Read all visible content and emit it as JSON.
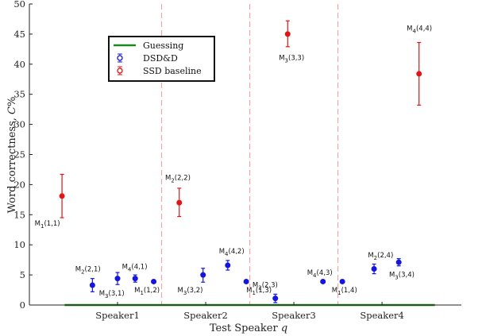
{
  "chart_data": {
    "type": "scatter",
    "title": "",
    "xlabel": "Test Speaker q",
    "ylabel": "Word correctness, C%",
    "ylim": [
      0,
      50
    ],
    "yticks": [
      0,
      5,
      10,
      15,
      20,
      25,
      30,
      35,
      40,
      45,
      50
    ],
    "categories": [
      "Speaker1",
      "Speaker2",
      "Speaker3",
      "Speaker4"
    ],
    "grid": false,
    "legend_position": "top-left",
    "colors": {
      "guessing": "#1a8a1a",
      "dsd": "#1515e0",
      "ssd": "#e01515",
      "separator": "#f4a6a6"
    },
    "series": [
      {
        "name": "Guessing",
        "kind": "line",
        "x": [
          0.4,
          4.6
        ],
        "y": [
          0,
          0
        ]
      },
      {
        "name": "DSD&D",
        "kind": "errorbar",
        "points": [
          {
            "x": 0.715,
            "y": 3.3,
            "low": 2.2,
            "high": 4.4
          },
          {
            "x": 1.0,
            "y": 4.4,
            "low": 3.4,
            "high": 5.4
          },
          {
            "x": 1.2,
            "y": 4.4,
            "low": 3.8,
            "high": 5.0
          },
          {
            "x": 1.41,
            "y": 3.9,
            "low": 3.9,
            "high": 3.9
          },
          {
            "x": 1.97,
            "y": 5.0,
            "low": 3.8,
            "high": 6.1
          },
          {
            "x": 2.25,
            "y": 6.6,
            "low": 5.8,
            "high": 7.4
          },
          {
            "x": 2.46,
            "y": 3.9,
            "low": 3.9,
            "high": 3.9
          },
          {
            "x": 2.79,
            "y": 1.1,
            "low": 0.4,
            "high": 1.8
          },
          {
            "x": 3.33,
            "y": 3.9,
            "low": 3.9,
            "high": 3.9
          },
          {
            "x": 3.55,
            "y": 3.9,
            "low": 3.9,
            "high": 3.9
          },
          {
            "x": 3.91,
            "y": 6.0,
            "low": 5.2,
            "high": 6.8
          },
          {
            "x": 4.19,
            "y": 7.1,
            "low": 6.5,
            "high": 7.7
          }
        ]
      },
      {
        "name": "SSD baseline",
        "kind": "errorbar",
        "points": [
          {
            "x": 0.37,
            "y": 18.1,
            "low": 14.5,
            "high": 21.7
          },
          {
            "x": 1.7,
            "y": 17.0,
            "low": 14.7,
            "high": 19.4
          },
          {
            "x": 2.93,
            "y": 45.0,
            "low": 42.9,
            "high": 47.2
          },
          {
            "x": 4.42,
            "y": 38.4,
            "low": 33.2,
            "high": 43.6
          }
        ]
      }
    ],
    "separators": [
      1.5,
      2.5,
      3.5
    ],
    "annotations": [
      {
        "base": "M",
        "sub": "1",
        "args": "(1,1)",
        "x": 0.06,
        "y": 13.2
      },
      {
        "base": "M",
        "sub": "2",
        "args": "(2,1)",
        "x": 0.52,
        "y": 5.6
      },
      {
        "base": "M",
        "sub": "3",
        "args": "(3,1)",
        "x": 0.79,
        "y": 1.6
      },
      {
        "base": "M",
        "sub": "4",
        "args": "(4,1)",
        "x": 1.05,
        "y": 6.0
      },
      {
        "base": "M",
        "sub": "1",
        "args": "(1,2)",
        "x": 1.19,
        "y": 2.1
      },
      {
        "base": "M",
        "sub": "2",
        "args": "(2,2)",
        "x": 1.54,
        "y": 20.8
      },
      {
        "base": "M",
        "sub": "3",
        "args": "(3,2)",
        "x": 1.68,
        "y": 2.1
      },
      {
        "base": "M",
        "sub": "4",
        "args": "(4,2)",
        "x": 2.15,
        "y": 8.6
      },
      {
        "base": "M",
        "sub": "1",
        "args": "(1,3)",
        "x": 2.46,
        "y": 2.1
      },
      {
        "base": "M",
        "sub": "2",
        "args": "(2,3)",
        "x": 2.53,
        "y": 3.0
      },
      {
        "base": "M",
        "sub": "3",
        "args": "(3,3)",
        "x": 2.83,
        "y": 40.7
      },
      {
        "base": "M",
        "sub": "4",
        "args": "(4,3)",
        "x": 3.15,
        "y": 5.0
      },
      {
        "base": "M",
        "sub": "1",
        "args": "(1,4)",
        "x": 3.43,
        "y": 2.1
      },
      {
        "base": "M",
        "sub": "2",
        "args": "(2,4)",
        "x": 3.84,
        "y": 7.9
      },
      {
        "base": "M",
        "sub": "3",
        "args": "(3,4)",
        "x": 4.08,
        "y": 4.7
      },
      {
        "base": "M",
        "sub": "4",
        "args": "(4,4)",
        "x": 4.28,
        "y": 45.6
      }
    ]
  }
}
